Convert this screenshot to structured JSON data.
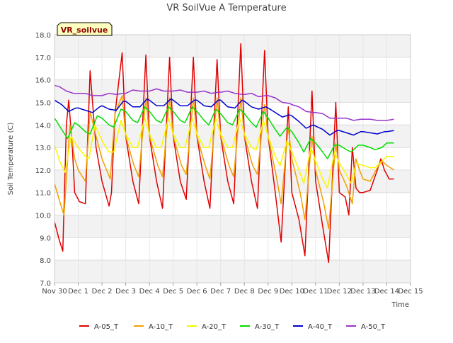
{
  "chart_data": {
    "type": "line",
    "title": "VR SoilVue A Temperature",
    "xlabel": "Time",
    "ylabel": "Soil Temperature (C)",
    "site_label": "VR_soilvue",
    "xlim": [
      0,
      15
    ],
    "ylim": [
      7.0,
      18.0
    ],
    "x_ticks": [
      0,
      1,
      2,
      3,
      4,
      5,
      6,
      7,
      8,
      9,
      10,
      11,
      12,
      13,
      14,
      15
    ],
    "x_tick_labels": [
      "Nov 30",
      "Dec 1",
      "Dec 2",
      "Dec 3",
      "Dec 4",
      "Dec 5",
      "Dec 6",
      "Dec 7",
      "Dec 8",
      "Dec 9",
      "Dec 10",
      "Dec 11",
      "Dec 12",
      "Dec 13",
      "Dec 14",
      "Dec 15"
    ],
    "y_ticks": [
      7.0,
      8.0,
      9.0,
      10.0,
      11.0,
      12.0,
      13.0,
      14.0,
      15.0,
      16.0,
      17.0,
      18.0
    ],
    "y_tick_labels": [
      "7.0",
      "8.0",
      "9.0",
      "10.0",
      "11.0",
      "12.0",
      "13.0",
      "14.0",
      "15.0",
      "16.0",
      "17.0",
      "18.0"
    ],
    "grid": true,
    "background_bands": "alternating light gray",
    "legend_placement": "bottom",
    "series": [
      {
        "name": "A-05_T",
        "color": "#e00000",
        "x": [
          0,
          0.2,
          0.35,
          0.5,
          0.6,
          0.75,
          0.85,
          1.05,
          1.3,
          1.5,
          1.75,
          2.0,
          2.3,
          2.4,
          2.55,
          2.85,
          3.0,
          3.3,
          3.55,
          3.85,
          4.0,
          4.3,
          4.55,
          4.85,
          5.0,
          5.3,
          5.55,
          5.85,
          6.0,
          6.3,
          6.55,
          6.85,
          7.0,
          7.3,
          7.55,
          7.85,
          8.0,
          8.3,
          8.55,
          8.85,
          9.0,
          9.3,
          9.55,
          9.85,
          10.0,
          10.3,
          10.55,
          10.85,
          11.0,
          11.3,
          11.55,
          11.85,
          12.0,
          12.25,
          12.4,
          12.55,
          12.7,
          12.85,
          13.0,
          13.3,
          13.6,
          13.75,
          13.9,
          14.0,
          14.1,
          14.3
        ],
        "y": [
          9.7,
          8.9,
          8.4,
          14.0,
          15.1,
          13.0,
          11.0,
          10.6,
          10.5,
          16.4,
          13.0,
          11.5,
          10.4,
          11.0,
          14.5,
          17.2,
          13.5,
          11.5,
          10.5,
          17.1,
          13.5,
          11.5,
          10.3,
          17.0,
          13.5,
          11.5,
          10.7,
          17.0,
          13.5,
          11.5,
          10.3,
          16.9,
          13.5,
          11.5,
          10.5,
          17.6,
          13.5,
          11.5,
          10.3,
          17.3,
          13.5,
          11.0,
          8.8,
          14.8,
          11.0,
          9.8,
          8.2,
          15.5,
          11.5,
          9.5,
          7.9,
          15.0,
          11.0,
          10.8,
          10.0,
          13.0,
          11.2,
          11.0,
          11.0,
          11.1,
          12.0,
          12.5,
          12.0,
          11.8,
          11.6,
          11.6
        ]
      },
      {
        "name": "A-10_T",
        "color": "#f0a000",
        "x": [
          0,
          0.25,
          0.4,
          0.65,
          0.85,
          1.0,
          1.3,
          1.5,
          1.75,
          2.0,
          2.35,
          2.55,
          2.85,
          3.0,
          3.35,
          3.55,
          3.85,
          4.0,
          4.35,
          4.55,
          4.85,
          5.0,
          5.35,
          5.55,
          5.85,
          6.0,
          6.35,
          6.55,
          6.85,
          7.0,
          7.35,
          7.55,
          7.85,
          8.0,
          8.35,
          8.55,
          8.85,
          9.0,
          9.35,
          9.55,
          9.85,
          10.0,
          10.35,
          10.55,
          10.85,
          11.0,
          11.35,
          11.55,
          11.85,
          12.0,
          12.3,
          12.55,
          12.7,
          12.85,
          13.0,
          13.3,
          13.6,
          13.8,
          14.0,
          14.3
        ],
        "y": [
          11.4,
          10.5,
          10.0,
          14.0,
          12.5,
          12.0,
          11.5,
          14.6,
          13.5,
          12.5,
          11.6,
          14.5,
          15.3,
          13.5,
          12.2,
          11.7,
          15.2,
          13.5,
          12.2,
          11.7,
          15.2,
          13.5,
          12.2,
          11.8,
          15.2,
          13.5,
          12.2,
          11.6,
          15.2,
          13.5,
          12.2,
          11.7,
          15.2,
          13.5,
          12.2,
          11.8,
          14.9,
          13.5,
          11.7,
          10.5,
          13.9,
          12.5,
          11.0,
          9.8,
          13.5,
          12.0,
          10.5,
          9.4,
          13.2,
          12.0,
          11.3,
          10.5,
          12.5,
          12.0,
          11.6,
          11.5,
          12.1,
          12.4,
          12.2,
          12.0
        ]
      },
      {
        "name": "A-20_T",
        "color": "#f8f800",
        "x": [
          0,
          0.25,
          0.45,
          0.7,
          1.0,
          1.3,
          1.45,
          1.7,
          2.0,
          2.3,
          2.5,
          2.8,
          3.0,
          3.3,
          3.5,
          3.8,
          4.0,
          4.3,
          4.5,
          4.8,
          5.0,
          5.3,
          5.5,
          5.8,
          6.0,
          6.3,
          6.5,
          6.8,
          7.0,
          7.3,
          7.5,
          7.8,
          8.0,
          8.3,
          8.5,
          8.8,
          9.0,
          9.3,
          9.5,
          9.8,
          10.0,
          10.3,
          10.5,
          10.8,
          11.0,
          11.3,
          11.5,
          11.8,
          12.0,
          12.3,
          12.5,
          12.7,
          13.0,
          13.3,
          13.5,
          13.8,
          14.0,
          14.3
        ],
        "y": [
          13.1,
          12.3,
          11.9,
          13.5,
          13.0,
          12.6,
          12.5,
          14.0,
          13.3,
          12.8,
          12.8,
          14.2,
          13.6,
          13.0,
          13.0,
          14.3,
          13.6,
          13.0,
          13.0,
          14.3,
          13.6,
          13.0,
          13.0,
          14.3,
          13.6,
          13.0,
          13.0,
          14.3,
          13.6,
          13.0,
          13.0,
          14.3,
          13.6,
          13.0,
          12.9,
          14.2,
          13.5,
          12.6,
          12.2,
          13.3,
          12.8,
          12.0,
          11.4,
          13.0,
          12.4,
          11.6,
          11.2,
          12.8,
          12.3,
          11.8,
          11.4,
          12.3,
          12.2,
          12.1,
          12.1,
          12.4,
          12.6,
          12.6
        ]
      },
      {
        "name": "A-30_T",
        "color": "#00dd00",
        "x": [
          0,
          0.3,
          0.55,
          0.85,
          1.0,
          1.3,
          1.5,
          1.8,
          2.0,
          2.3,
          2.5,
          2.8,
          3.0,
          3.3,
          3.5,
          3.8,
          4.0,
          4.3,
          4.5,
          4.8,
          5.0,
          5.3,
          5.5,
          5.8,
          6.0,
          6.3,
          6.5,
          6.8,
          7.0,
          7.3,
          7.5,
          7.8,
          8.0,
          8.3,
          8.5,
          8.8,
          9.0,
          9.3,
          9.5,
          9.8,
          10.0,
          10.3,
          10.5,
          10.8,
          11.0,
          11.3,
          11.5,
          11.8,
          12.0,
          12.3,
          12.5,
          12.8,
          13.0,
          13.3,
          13.5,
          13.8,
          14.0,
          14.3
        ],
        "y": [
          14.3,
          13.8,
          13.4,
          14.1,
          14.0,
          13.7,
          13.6,
          14.4,
          14.3,
          14.0,
          13.9,
          14.7,
          14.6,
          14.2,
          14.1,
          14.8,
          14.6,
          14.2,
          14.1,
          14.8,
          14.6,
          14.2,
          14.1,
          14.8,
          14.6,
          14.2,
          14.0,
          14.7,
          14.5,
          14.1,
          14.0,
          14.7,
          14.5,
          14.1,
          13.9,
          14.6,
          14.3,
          13.8,
          13.5,
          13.9,
          13.7,
          13.2,
          12.8,
          13.4,
          13.2,
          12.8,
          12.5,
          13.1,
          13.1,
          12.9,
          12.8,
          13.1,
          13.1,
          13.0,
          12.9,
          13.0,
          13.2,
          13.2
        ]
      },
      {
        "name": "A-40_T",
        "color": "#0000cc",
        "x": [
          0,
          0.3,
          0.6,
          0.9,
          1.0,
          1.3,
          1.6,
          1.9,
          2.0,
          2.3,
          2.6,
          2.9,
          3.0,
          3.3,
          3.6,
          3.9,
          4.0,
          4.3,
          4.6,
          4.9,
          5.0,
          5.3,
          5.6,
          5.9,
          6.0,
          6.3,
          6.6,
          6.9,
          7.0,
          7.3,
          7.6,
          7.9,
          8.0,
          8.3,
          8.6,
          8.9,
          9.0,
          9.3,
          9.6,
          9.9,
          10.0,
          10.3,
          10.6,
          10.9,
          11.0,
          11.3,
          11.6,
          11.9,
          12.0,
          12.3,
          12.6,
          12.9,
          13.0,
          13.3,
          13.6,
          13.9,
          14.0,
          14.3
        ],
        "y": [
          15.1,
          14.9,
          14.6,
          14.75,
          14.75,
          14.65,
          14.55,
          14.8,
          14.85,
          14.7,
          14.65,
          15.05,
          15.05,
          14.8,
          14.8,
          15.15,
          15.1,
          14.85,
          14.85,
          15.15,
          15.1,
          14.85,
          14.85,
          15.1,
          15.1,
          14.85,
          14.8,
          15.1,
          15.1,
          14.8,
          14.75,
          15.1,
          15.05,
          14.8,
          14.7,
          14.8,
          14.75,
          14.55,
          14.35,
          14.45,
          14.4,
          14.15,
          13.85,
          14.0,
          13.95,
          13.8,
          13.55,
          13.75,
          13.75,
          13.65,
          13.55,
          13.7,
          13.7,
          13.65,
          13.6,
          13.7,
          13.7,
          13.75
        ]
      },
      {
        "name": "A-50_T",
        "color": "#9933cc",
        "x": [
          0,
          0.2,
          0.5,
          0.8,
          1.0,
          1.3,
          1.6,
          1.9,
          2.0,
          2.3,
          2.6,
          2.9,
          3.0,
          3.3,
          3.6,
          3.9,
          4.0,
          4.3,
          4.6,
          4.9,
          5.0,
          5.3,
          5.6,
          5.9,
          6.0,
          6.3,
          6.6,
          6.9,
          7.0,
          7.3,
          7.6,
          7.9,
          8.0,
          8.3,
          8.6,
          8.9,
          9.0,
          9.3,
          9.6,
          9.9,
          10.0,
          10.3,
          10.6,
          10.9,
          11.0,
          11.3,
          11.6,
          11.9,
          12.0,
          12.3,
          12.6,
          12.9,
          13.0,
          13.3,
          13.6,
          13.9,
          14.0,
          14.3
        ],
        "y": [
          15.75,
          15.7,
          15.5,
          15.4,
          15.4,
          15.4,
          15.3,
          15.3,
          15.3,
          15.4,
          15.35,
          15.4,
          15.4,
          15.55,
          15.5,
          15.5,
          15.5,
          15.6,
          15.5,
          15.5,
          15.5,
          15.55,
          15.45,
          15.45,
          15.45,
          15.5,
          15.4,
          15.45,
          15.45,
          15.5,
          15.4,
          15.35,
          15.35,
          15.4,
          15.25,
          15.3,
          15.3,
          15.2,
          15.0,
          14.95,
          14.9,
          14.8,
          14.6,
          14.55,
          14.55,
          14.5,
          14.3,
          14.3,
          14.3,
          14.3,
          14.2,
          14.25,
          14.25,
          14.25,
          14.2,
          14.2,
          14.2,
          14.25
        ]
      }
    ]
  }
}
